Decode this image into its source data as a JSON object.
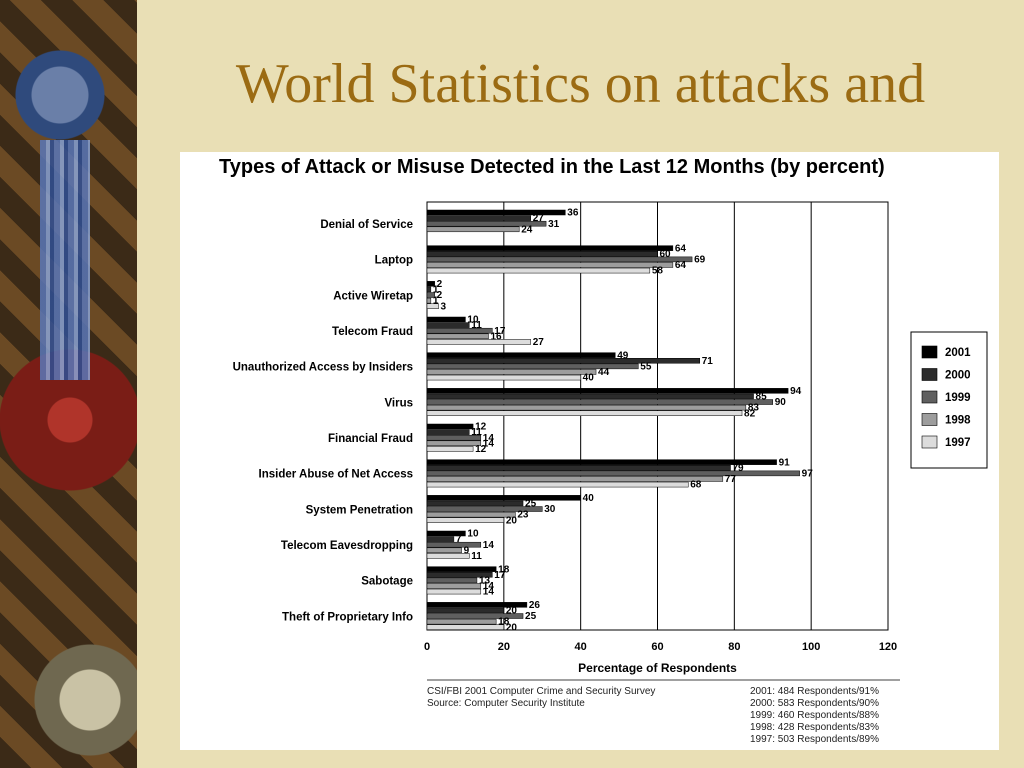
{
  "slide": {
    "title": "World Statistics on attacks and"
  },
  "chart_data": {
    "type": "bar",
    "orientation": "horizontal",
    "title": "Types of Attack or Misuse Detected in the Last 12 Months (by percent)",
    "xlabel": "Percentage of Respondents",
    "ylabel": "",
    "xlim": [
      0,
      120
    ],
    "xticks": [
      0,
      20,
      40,
      60,
      80,
      100,
      120
    ],
    "grid": "vertical",
    "legend_position": "right",
    "categories": [
      "Denial of Service",
      "Laptop",
      "Active Wiretap",
      "Telecom Fraud",
      "Unauthorized Access by Insiders",
      "Virus",
      "Financial Fraud",
      "Insider Abuse of Net Access",
      "System Penetration",
      "Telecom Eavesdropping",
      "Sabotage",
      "Theft of Proprietary Info"
    ],
    "series": [
      {
        "name": "2001",
        "color": "#000000",
        "values": [
          36,
          64,
          2,
          10,
          49,
          94,
          12,
          91,
          40,
          10,
          18,
          26
        ]
      },
      {
        "name": "2000",
        "color": "#2b2b2b",
        "values": [
          27,
          60,
          1,
          11,
          71,
          85,
          11,
          79,
          25,
          7,
          17,
          20
        ]
      },
      {
        "name": "1999",
        "color": "#5f5f5f",
        "values": [
          31,
          69,
          2,
          17,
          55,
          90,
          14,
          97,
          30,
          14,
          13,
          25
        ]
      },
      {
        "name": "1998",
        "color": "#9d9d9d",
        "values": [
          24,
          64,
          1,
          16,
          44,
          83,
          14,
          77,
          23,
          9,
          14,
          18
        ]
      },
      {
        "name": "1997",
        "color": "#dcdcdc",
        "values": [
          null,
          58,
          3,
          27,
          40,
          82,
          12,
          68,
          20,
          11,
          14,
          20
        ]
      }
    ]
  },
  "footer": {
    "source": [
      "CSI/FBI 2001 Computer Crime and Security Survey",
      "Source: Computer Security Institute"
    ],
    "respondents": [
      "2001: 484 Respondents/91%",
      "2000: 583 Respondents/90%",
      "1999: 460 Respondents/88%",
      "1998: 428 Respondents/83%",
      "1997: 503 Respondents/89%"
    ]
  }
}
